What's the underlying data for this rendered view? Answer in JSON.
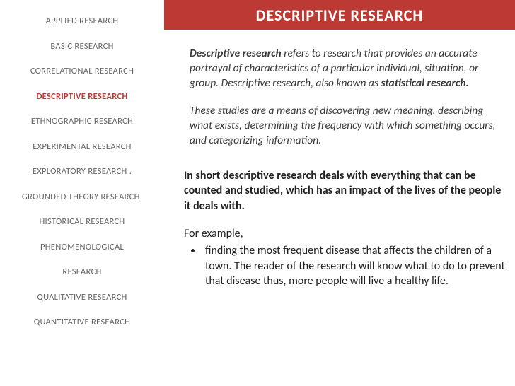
{
  "header": {
    "title": "DESCRIPTIVE RESEARCH"
  },
  "sidebar": {
    "items": [
      {
        "label": "APPLIED RESEARCH",
        "active": false
      },
      {
        "label": "BASIC RESEARCH",
        "active": false
      },
      {
        "label": "CORRELATIONAL RESEARCH",
        "active": false
      },
      {
        "label": "DESCRIPTIVE RESEARCH",
        "active": true
      },
      {
        "label": "ETHNOGRAPHIC RESEARCH",
        "active": false
      },
      {
        "label": "EXPERIMENTAL RESEARCH",
        "active": false
      },
      {
        "label": "EXPLORATORY RESEARCH .",
        "active": false
      },
      {
        "label": "GROUNDED THEORY RESEARCH.",
        "active": false
      },
      {
        "label": "HISTORICAL RESEARCH",
        "active": false
      },
      {
        "label": "PHENOMENOLOGICAL",
        "active": false
      },
      {
        "label": "RESEARCH",
        "active": false
      },
      {
        "label": "QUALITATIVE RESEARCH",
        "active": false
      },
      {
        "label": "QUANTITATIVE RESEARCH",
        "active": false
      }
    ]
  },
  "content": {
    "p1_lead": "Descriptive research",
    "p1_rest": " refers to research that provides an accurate portrayal of characteristics of a particular individual, situation, or group. Descriptive research, also known as ",
    "p1_tail": "statistical research.",
    "p2": "These studies are a means of discovering new meaning, describing what exists, determining the frequency with which something occurs, and categorizing information.",
    "p3": "In short descriptive research deals with everything that can be counted and studied, which has an impact of the lives of the people it deals with.",
    "p4_lead": "For example,",
    "bullet1": "finding the most frequent disease that affects the children of a town. The reader of the research will know what to do to prevent that disease thus, more people will live a healthy life."
  },
  "colors": {
    "accent": "#bc3a33",
    "background": "#ffffff",
    "sidebar_text": "#666666",
    "body_text": "#3a3a3a",
    "strong_text": "#222222"
  }
}
